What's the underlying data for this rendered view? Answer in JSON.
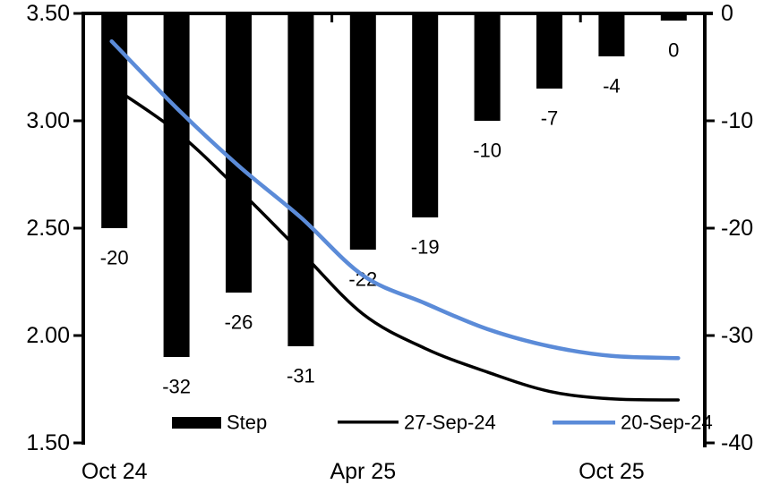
{
  "chart_data": {
    "type": "combo-bar-line",
    "title": "",
    "background_color": "#ffffff",
    "n_slots": 10,
    "bar_series": {
      "name": "Step",
      "axis": "right",
      "color": "#000000",
      "values": [
        -20,
        -32,
        -26,
        -31,
        -22,
        -19,
        -10,
        -7,
        -4,
        0
      ],
      "data_labels": [
        "-20",
        "-32",
        "-26",
        "-31",
        "-22",
        "-19",
        "-10",
        "-7",
        "-4",
        "0"
      ]
    },
    "line_series": [
      {
        "name": "27-Sep-24",
        "axis": "left",
        "color": "#000000",
        "width": 3.5,
        "values": [
          3.16,
          2.95,
          2.68,
          2.39,
          2.1,
          1.94,
          1.83,
          1.74,
          1.705,
          1.7
        ]
      },
      {
        "name": "20-Sep-24",
        "axis": "left",
        "color": "#5B8BD8",
        "width": 4.5,
        "values": [
          3.37,
          3.06,
          2.79,
          2.55,
          2.28,
          2.15,
          2.03,
          1.95,
          1.905,
          1.895
        ]
      }
    ],
    "left_axis": {
      "min": 1.5,
      "max": 3.5,
      "tick_values": [
        3.5,
        3.0,
        2.5,
        2.0,
        1.5
      ],
      "tick_labels": [
        "3.50",
        "3.00",
        "2.50",
        "2.00",
        "1.50"
      ]
    },
    "right_axis": {
      "min": -40,
      "max": 0,
      "tick_values": [
        0,
        -10,
        -20,
        -30,
        -40
      ],
      "tick_labels": [
        "0",
        "-10",
        "-20",
        "-30",
        "-40"
      ]
    },
    "x_axis": {
      "labels": [
        {
          "text": "Oct 24",
          "slot": 0
        },
        {
          "text": "Apr 25",
          "slot": 4
        },
        {
          "text": "Oct 25",
          "slot": 8
        }
      ],
      "boundary_ticks": [
        4,
        8
      ]
    },
    "legend": [
      {
        "label": "Step",
        "swatch": "bar",
        "color": "#000000"
      },
      {
        "label": "27-Sep-24",
        "swatch": "line",
        "color": "#000000"
      },
      {
        "label": "20-Sep-24",
        "swatch": "line",
        "color": "#5B8BD8"
      }
    ],
    "axis_color": "#000000"
  }
}
